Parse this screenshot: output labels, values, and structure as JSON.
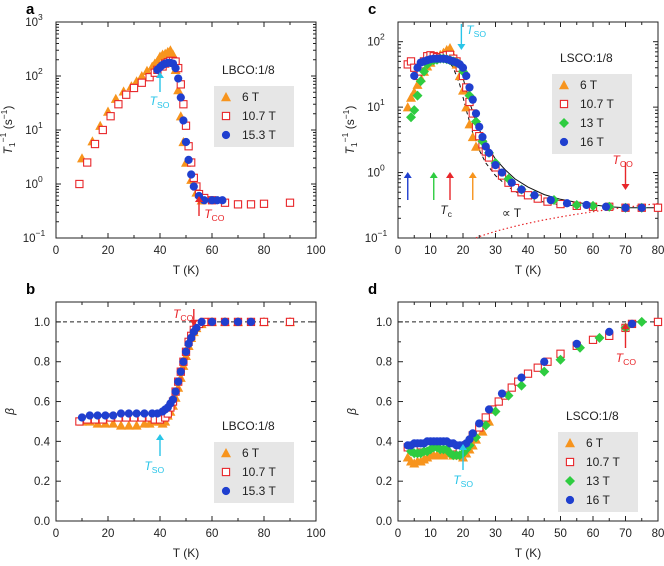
{
  "colors": {
    "orange": "#f7941d",
    "red": "#e8262a",
    "green": "#2ecc40",
    "blue": "#1f3fcf",
    "cyan": "#29c5e8",
    "legend_bg": "#e6e6e6"
  },
  "chart_data": [
    {
      "panel": "a",
      "type": "scatter",
      "sample": "LBCO:1/8",
      "xlabel": "T (K)",
      "ylabel": "T1^-1 (s^-1)",
      "yscale": "log",
      "xlim": [
        0,
        100
      ],
      "ylim": [
        0.1,
        1000
      ],
      "xticks": [
        "0",
        "20",
        "40",
        "60",
        "80",
        "100"
      ],
      "yticks": [
        "10",
        "10",
        "10",
        "10",
        "10"
      ],
      "ytick_exps": [
        "−1",
        "0",
        "1",
        "2",
        "3"
      ],
      "legend": [
        "6 T",
        "10.7 T",
        "15.3 T"
      ],
      "annotations": {
        "tso": "T",
        "tso_sub": "SO",
        "tco": "T",
        "tco_sub": "CO"
      },
      "series": [
        {
          "name": "6 T",
          "marker": "triangle",
          "color": "orange",
          "x": [
            10,
            14,
            17,
            20,
            23,
            26,
            29,
            31,
            33,
            35,
            37,
            38,
            39,
            40,
            41,
            42,
            43,
            44,
            45,
            46,
            47,
            48,
            49,
            50,
            52,
            54,
            56
          ],
          "y": [
            3.0,
            6.2,
            12,
            22,
            38,
            52,
            65,
            80,
            100,
            125,
            150,
            170,
            190,
            230,
            250,
            260,
            280,
            300,
            250,
            130,
            55,
            18,
            6,
            2.5,
            1.2,
            0.7,
            0.5
          ]
        },
        {
          "name": "10.7 T",
          "marker": "open-square",
          "color": "red",
          "x": [
            9,
            12,
            15,
            18,
            21,
            24,
            27,
            30,
            33,
            36,
            38,
            39,
            41,
            42,
            43,
            44,
            45,
            46,
            47,
            48,
            49,
            50,
            51,
            52,
            53,
            54,
            55,
            57,
            60,
            65,
            70,
            75,
            80,
            90
          ],
          "y": [
            1.0,
            2.5,
            5.5,
            10,
            18,
            30,
            45,
            60,
            75,
            95,
            115,
            130,
            150,
            170,
            180,
            190,
            190,
            185,
            140,
            70,
            30,
            12,
            5,
            2.5,
            1.3,
            0.9,
            0.65,
            0.55,
            0.5,
            0.45,
            0.42,
            0.42,
            0.43,
            0.45
          ]
        },
        {
          "name": "15.3 T",
          "marker": "circle",
          "color": "blue",
          "x": [
            39,
            40,
            41,
            42,
            43,
            44,
            45,
            46,
            47,
            48,
            49,
            50,
            51,
            52,
            53,
            55,
            57,
            60,
            62,
            64
          ],
          "y": [
            130,
            145,
            160,
            170,
            175,
            175,
            170,
            140,
            90,
            40,
            15,
            6,
            2.8,
            1.5,
            0.9,
            0.6,
            0.5,
            0.5,
            0.5,
            0.5
          ]
        }
      ]
    },
    {
      "panel": "c",
      "type": "scatter",
      "sample": "LSCO:1/8",
      "xlabel": "T (K)",
      "ylabel": "T1^-1 (s^-1)",
      "yscale": "log",
      "xlim": [
        0,
        80
      ],
      "ylim": [
        0.1,
        200
      ],
      "xticks": [
        "0",
        "10",
        "20",
        "30",
        "40",
        "50",
        "60",
        "70",
        "80"
      ],
      "yticks": [
        "10",
        "10",
        "10",
        "10"
      ],
      "ytick_exps": [
        "−1",
        "0",
        "1",
        "2"
      ],
      "legend": [
        "6 T",
        "10.7 T",
        "13 T",
        "16 T"
      ],
      "annotations": {
        "tso": "T",
        "tso_sub": "SO",
        "tco": "T",
        "tco_sub": "CO",
        "tc": "T",
        "tc_sub": "c",
        "propT": "∝ T"
      },
      "series": [
        {
          "name": "6 T",
          "marker": "triangle",
          "color": "orange",
          "x": [
            3,
            4,
            5,
            6,
            7,
            8,
            9,
            10,
            11,
            12,
            13,
            14,
            15,
            16,
            17,
            18,
            19,
            20,
            21,
            22,
            23,
            24
          ],
          "y": [
            10,
            14,
            17,
            22,
            28,
            35,
            42,
            48,
            55,
            60,
            63,
            68,
            75,
            80,
            60,
            45,
            30,
            18,
            10,
            5.5,
            3.5,
            2.5
          ]
        },
        {
          "name": "10.7 T",
          "marker": "open-square",
          "color": "red",
          "x": [
            3,
            4,
            5,
            6,
            7,
            8,
            9,
            10,
            11,
            12,
            13,
            14,
            15,
            16,
            17,
            18,
            19,
            20,
            21,
            22,
            23,
            24,
            25,
            26,
            27,
            28,
            30,
            32,
            34,
            36,
            38,
            40,
            43,
            46,
            50,
            55,
            60,
            65,
            70,
            75,
            80
          ],
          "y": [
            45,
            50,
            40,
            30,
            35,
            50,
            60,
            62,
            60,
            58,
            57,
            60,
            62,
            63,
            55,
            50,
            40,
            30,
            20,
            12,
            8,
            5,
            3.6,
            2.7,
            2.1,
            1.7,
            1.2,
            0.9,
            0.7,
            0.58,
            0.5,
            0.45,
            0.4,
            0.36,
            0.33,
            0.31,
            0.3,
            0.3,
            0.29,
            0.29,
            0.29
          ]
        },
        {
          "name": "13 T",
          "marker": "diamond",
          "color": "green",
          "x": [
            4,
            5,
            6,
            7,
            8,
            9,
            10,
            11,
            12,
            13,
            14,
            15,
            16,
            17,
            18,
            19,
            20,
            22,
            24,
            26,
            28,
            30,
            34,
            38,
            42,
            48,
            55,
            60,
            65,
            70,
            75
          ],
          "y": [
            7,
            9,
            15,
            25,
            35,
            45,
            50,
            52,
            53,
            55,
            55,
            54,
            52,
            50,
            48,
            45,
            35,
            15,
            6,
            3,
            2,
            1.4,
            0.8,
            0.55,
            0.45,
            0.38,
            0.32,
            0.31,
            0.3,
            0.29,
            0.29
          ]
        },
        {
          "name": "16 T",
          "marker": "circle",
          "color": "blue",
          "x": [
            5,
            6,
            7,
            8,
            9,
            10,
            11,
            12,
            13,
            14,
            15,
            16,
            17,
            18,
            19,
            20,
            21,
            22,
            23,
            24,
            25,
            26,
            27,
            28,
            30,
            32,
            35,
            38,
            42,
            47,
            52,
            58,
            64,
            70,
            75
          ],
          "y": [
            30,
            40,
            48,
            50,
            52,
            54,
            55,
            55,
            55,
            55,
            54,
            52,
            50,
            48,
            45,
            40,
            30,
            20,
            13,
            8,
            5,
            3.5,
            2.5,
            2,
            1.3,
            1,
            0.7,
            0.55,
            0.45,
            0.38,
            0.34,
            0.32,
            0.3,
            0.29,
            0.29
          ]
        }
      ]
    },
    {
      "panel": "b",
      "type": "scatter",
      "sample": "LBCO:1/8",
      "xlabel": "T (K)",
      "ylabel": "β",
      "xlim": [
        0,
        100
      ],
      "ylim": [
        0.0,
        1.1
      ],
      "xticks": [
        "0",
        "20",
        "40",
        "60",
        "80",
        "100"
      ],
      "yticks": [
        "0.0",
        "0.2",
        "0.4",
        "0.6",
        "0.8",
        "1.0"
      ],
      "legend": [
        "6 T",
        "10.7 T",
        "15.3 T"
      ],
      "annotations": {
        "tso": "T",
        "tso_sub": "SO",
        "tco": "T",
        "tco_sub": "CO"
      },
      "series": [
        {
          "name": "6 T",
          "marker": "triangle",
          "color": "orange",
          "x": [
            10,
            13,
            16,
            19,
            22,
            25,
            28,
            31,
            34,
            36,
            38,
            40,
            41,
            42,
            43,
            44,
            45,
            46,
            47,
            48,
            49,
            50,
            51,
            52,
            53,
            54,
            56,
            60,
            65,
            70,
            80,
            90
          ],
          "y": [
            0.5,
            0.5,
            0.49,
            0.49,
            0.49,
            0.48,
            0.48,
            0.48,
            0.49,
            0.49,
            0.5,
            0.5,
            0.49,
            0.5,
            0.53,
            0.55,
            0.58,
            0.62,
            0.67,
            0.72,
            0.78,
            0.83,
            0.88,
            0.92,
            0.95,
            0.97,
            0.99,
            1.0,
            1.0,
            1.0,
            1.0,
            1.0
          ]
        },
        {
          "name": "10.7 T",
          "marker": "open-square",
          "color": "red",
          "x": [
            9,
            12,
            15,
            18,
            21,
            24,
            27,
            30,
            33,
            36,
            38,
            40,
            42,
            43,
            44,
            45,
            46,
            47,
            48,
            49,
            50,
            51,
            52,
            53,
            54,
            55,
            57,
            60,
            65,
            70,
            75,
            80,
            90
          ],
          "y": [
            0.5,
            0.51,
            0.51,
            0.51,
            0.52,
            0.52,
            0.52,
            0.52,
            0.52,
            0.52,
            0.51,
            0.51,
            0.52,
            0.54,
            0.57,
            0.6,
            0.65,
            0.7,
            0.75,
            0.8,
            0.85,
            0.9,
            0.93,
            0.96,
            0.98,
            0.99,
            1.0,
            1.0,
            1.0,
            1.0,
            1.0,
            1.0,
            1.0
          ]
        },
        {
          "name": "15.3 T",
          "marker": "circle",
          "color": "blue",
          "x": [
            10,
            13,
            16,
            19,
            22,
            25,
            28,
            31,
            34,
            37,
            39,
            41,
            42,
            43,
            44,
            45,
            46,
            47,
            48,
            49,
            50,
            51,
            52,
            53,
            54,
            56,
            60,
            65,
            70,
            75
          ],
          "y": [
            0.52,
            0.53,
            0.53,
            0.53,
            0.53,
            0.54,
            0.54,
            0.54,
            0.54,
            0.54,
            0.54,
            0.55,
            0.56,
            0.57,
            0.59,
            0.61,
            0.65,
            0.7,
            0.75,
            0.8,
            0.85,
            0.89,
            0.92,
            0.95,
            0.97,
            1.0,
            1.0,
            1.0,
            1.0,
            1.0
          ]
        }
      ]
    },
    {
      "panel": "d",
      "type": "scatter",
      "sample": "LSCO:1/8",
      "xlabel": "T (K)",
      "ylabel": "β",
      "xlim": [
        0,
        80
      ],
      "ylim": [
        0.0,
        1.1
      ],
      "xticks": [
        "0",
        "10",
        "20",
        "30",
        "40",
        "50",
        "60",
        "70",
        "80"
      ],
      "yticks": [
        "0.0",
        "0.2",
        "0.4",
        "0.6",
        "0.8",
        "1.0"
      ],
      "legend": [
        "6 T",
        "10.7 T",
        "13 T",
        "16 T"
      ],
      "annotations": {
        "tso": "T",
        "tso_sub": "SO",
        "tco": "T",
        "tco_sub": "CO"
      },
      "series": [
        {
          "name": "6 T",
          "marker": "triangle",
          "color": "orange",
          "x": [
            3,
            4,
            5,
            6,
            7,
            8,
            9,
            10,
            11,
            12,
            13,
            14,
            15,
            16,
            17,
            18,
            19,
            20,
            21,
            22,
            23,
            24,
            26,
            28
          ],
          "y": [
            0.32,
            0.3,
            0.29,
            0.3,
            0.3,
            0.31,
            0.32,
            0.33,
            0.33,
            0.33,
            0.33,
            0.33,
            0.34,
            0.34,
            0.33,
            0.33,
            0.33,
            0.32,
            0.34,
            0.36,
            0.38,
            0.41,
            0.45,
            0.5
          ]
        },
        {
          "name": "10.7 T",
          "marker": "open-square",
          "color": "red",
          "x": [
            3,
            5,
            7,
            9,
            11,
            13,
            15,
            17,
            19,
            21,
            23,
            25,
            27,
            29,
            31,
            33,
            35,
            37,
            40,
            43,
            46,
            50,
            55,
            60,
            65,
            70,
            72,
            80
          ],
          "y": [
            0.37,
            0.37,
            0.38,
            0.38,
            0.38,
            0.38,
            0.38,
            0.37,
            0.36,
            0.38,
            0.43,
            0.47,
            0.52,
            0.56,
            0.6,
            0.63,
            0.67,
            0.7,
            0.74,
            0.77,
            0.8,
            0.84,
            0.88,
            0.91,
            0.93,
            0.97,
            0.99,
            1.0
          ]
        },
        {
          "name": "13 T",
          "marker": "diamond",
          "color": "green",
          "x": [
            4,
            5,
            6,
            7,
            8,
            9,
            10,
            11,
            12,
            13,
            14,
            15,
            16,
            17,
            18,
            19,
            20,
            21,
            22,
            24,
            27,
            30,
            34,
            38,
            45,
            50,
            56,
            62,
            70,
            75
          ],
          "y": [
            0.35,
            0.34,
            0.34,
            0.34,
            0.35,
            0.35,
            0.36,
            0.37,
            0.37,
            0.36,
            0.36,
            0.36,
            0.34,
            0.33,
            0.33,
            0.33,
            0.34,
            0.36,
            0.38,
            0.42,
            0.48,
            0.55,
            0.63,
            0.68,
            0.75,
            0.81,
            0.87,
            0.92,
            0.97,
            1.0
          ]
        },
        {
          "name": "16 T",
          "marker": "circle",
          "color": "blue",
          "x": [
            3,
            4,
            5,
            6,
            7,
            8,
            9,
            10,
            11,
            12,
            13,
            14,
            15,
            16,
            17,
            18,
            19,
            20,
            21,
            22,
            23,
            25,
            28,
            32,
            38,
            45,
            55,
            65,
            72
          ],
          "y": [
            0.38,
            0.38,
            0.39,
            0.39,
            0.39,
            0.39,
            0.4,
            0.4,
            0.4,
            0.4,
            0.4,
            0.4,
            0.4,
            0.39,
            0.39,
            0.38,
            0.38,
            0.38,
            0.39,
            0.41,
            0.44,
            0.49,
            0.56,
            0.64,
            0.72,
            0.8,
            0.89,
            0.95,
            0.99
          ]
        }
      ]
    }
  ]
}
